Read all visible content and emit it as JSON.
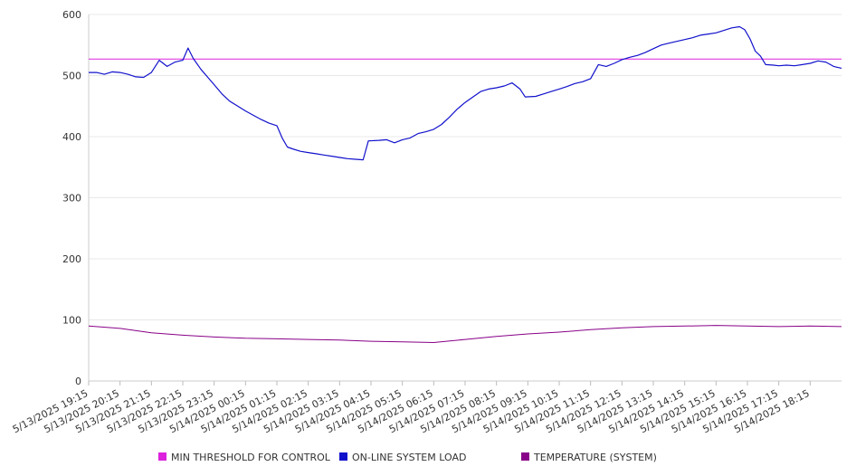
{
  "chart_data": {
    "type": "line",
    "title": "",
    "xlabel": "",
    "ylabel": "",
    "ylim": [
      0,
      600
    ],
    "yticks": [
      0,
      100,
      200,
      300,
      400,
      500,
      600
    ],
    "grid": true,
    "legend_position": "bottom",
    "x_start": "5/13/2025 19:15",
    "x_end": "5/14/2025 19:15",
    "x_tick_labels": [
      "5/13/2025 19:15",
      "5/13/2025 20:15",
      "5/13/2025 21:15",
      "5/13/2025 22:15",
      "5/13/2025 23:15",
      "5/14/2025 00:15",
      "5/14/2025 01:15",
      "5/14/2025 02:15",
      "5/14/2025 03:15",
      "5/14/2025 04:15",
      "5/14/2025 05:15",
      "5/14/2025 06:15",
      "5/14/2025 07:15",
      "5/14/2025 08:15",
      "5/14/2025 09:15",
      "5/14/2025 10:15",
      "5/14/2025 11:15",
      "5/14/2025 12:15",
      "5/14/2025 13:15",
      "5/14/2025 14:15",
      "5/14/2025 15:15",
      "5/14/2025 16:15",
      "5/14/2025 17:15",
      "5/14/2025 18:15"
    ],
    "series": [
      {
        "name": "MIN THRESHOLD FOR CONTROL",
        "color": "#dd22dd",
        "points": [
          [
            "5/13/2025 19:15",
            527
          ],
          [
            "5/14/2025 19:15",
            527
          ]
        ]
      },
      {
        "name": "ON-LINE SYSTEM LOAD",
        "color": "#1111cc",
        "points": [
          [
            "5/13/2025 19:15",
            505
          ],
          [
            "5/13/2025 19:30",
            505
          ],
          [
            "5/13/2025 19:45",
            502
          ],
          [
            "5/13/2025 20:00",
            506
          ],
          [
            "5/13/2025 20:15",
            505
          ],
          [
            "5/13/2025 20:30",
            502
          ],
          [
            "5/13/2025 20:45",
            498
          ],
          [
            "5/13/2025 21:00",
            497
          ],
          [
            "5/13/2025 21:15",
            505
          ],
          [
            "5/13/2025 21:30",
            525
          ],
          [
            "5/13/2025 21:45",
            515
          ],
          [
            "5/13/2025 22:00",
            522
          ],
          [
            "5/13/2025 22:15",
            525
          ],
          [
            "5/13/2025 22:25",
            545
          ],
          [
            "5/13/2025 22:35",
            528
          ],
          [
            "5/13/2025 22:50",
            510
          ],
          [
            "5/13/2025 23:05",
            495
          ],
          [
            "5/13/2025 23:15",
            485
          ],
          [
            "5/13/2025 23:30",
            470
          ],
          [
            "5/13/2025 23:45",
            458
          ],
          [
            "5/14/2025 00:00",
            450
          ],
          [
            "5/14/2025 00:15",
            442
          ],
          [
            "5/14/2025 00:30",
            435
          ],
          [
            "5/14/2025 00:45",
            428
          ],
          [
            "5/14/2025 01:00",
            422
          ],
          [
            "5/14/2025 01:15",
            418
          ],
          [
            "5/14/2025 01:25",
            398
          ],
          [
            "5/14/2025 01:35",
            383
          ],
          [
            "5/14/2025 01:45",
            380
          ],
          [
            "5/14/2025 02:00",
            376
          ],
          [
            "5/14/2025 02:15",
            374
          ],
          [
            "5/14/2025 02:30",
            372
          ],
          [
            "5/14/2025 02:45",
            370
          ],
          [
            "5/14/2025 03:00",
            368
          ],
          [
            "5/14/2025 03:15",
            366
          ],
          [
            "5/14/2025 03:30",
            364
          ],
          [
            "5/14/2025 03:45",
            363
          ],
          [
            "5/14/2025 04:00",
            362
          ],
          [
            "5/14/2025 04:10",
            393
          ],
          [
            "5/14/2025 04:30",
            394
          ],
          [
            "5/14/2025 04:45",
            395
          ],
          [
            "5/14/2025 05:00",
            390
          ],
          [
            "5/14/2025 05:15",
            395
          ],
          [
            "5/14/2025 05:30",
            398
          ],
          [
            "5/14/2025 05:45",
            405
          ],
          [
            "5/14/2025 06:00",
            408
          ],
          [
            "5/14/2025 06:15",
            412
          ],
          [
            "5/14/2025 06:30",
            420
          ],
          [
            "5/14/2025 06:45",
            432
          ],
          [
            "5/14/2025 07:00",
            445
          ],
          [
            "5/14/2025 07:15",
            456
          ],
          [
            "5/14/2025 07:30",
            465
          ],
          [
            "5/14/2025 07:45",
            474
          ],
          [
            "5/14/2025 08:00",
            478
          ],
          [
            "5/14/2025 08:15",
            480
          ],
          [
            "5/14/2025 08:30",
            483
          ],
          [
            "5/14/2025 08:45",
            488
          ],
          [
            "5/14/2025 09:00",
            478
          ],
          [
            "5/14/2025 09:10",
            465
          ],
          [
            "5/14/2025 09:30",
            466
          ],
          [
            "5/14/2025 09:45",
            470
          ],
          [
            "5/14/2025 10:00",
            474
          ],
          [
            "5/14/2025 10:15",
            478
          ],
          [
            "5/14/2025 10:30",
            482
          ],
          [
            "5/14/2025 10:45",
            487
          ],
          [
            "5/14/2025 11:00",
            490
          ],
          [
            "5/14/2025 11:15",
            495
          ],
          [
            "5/14/2025 11:30",
            518
          ],
          [
            "5/14/2025 11:45",
            515
          ],
          [
            "5/14/2025 12:00",
            520
          ],
          [
            "5/14/2025 12:15",
            526
          ],
          [
            "5/14/2025 12:30",
            530
          ],
          [
            "5/14/2025 12:45",
            533
          ],
          [
            "5/14/2025 13:00",
            538
          ],
          [
            "5/14/2025 13:15",
            544
          ],
          [
            "5/14/2025 13:30",
            550
          ],
          [
            "5/14/2025 13:45",
            553
          ],
          [
            "5/14/2025 14:00",
            556
          ],
          [
            "5/14/2025 14:15",
            559
          ],
          [
            "5/14/2025 14:30",
            562
          ],
          [
            "5/14/2025 14:45",
            566
          ],
          [
            "5/14/2025 15:00",
            568
          ],
          [
            "5/14/2025 15:15",
            570
          ],
          [
            "5/14/2025 15:30",
            574
          ],
          [
            "5/14/2025 15:45",
            578
          ],
          [
            "5/14/2025 16:00",
            580
          ],
          [
            "5/14/2025 16:10",
            575
          ],
          [
            "5/14/2025 16:20",
            560
          ],
          [
            "5/14/2025 16:30",
            540
          ],
          [
            "5/14/2025 16:40",
            532
          ],
          [
            "5/14/2025 16:50",
            518
          ],
          [
            "5/14/2025 17:05",
            517
          ],
          [
            "5/14/2025 17:15",
            516
          ],
          [
            "5/14/2025 17:30",
            517
          ],
          [
            "5/14/2025 17:45",
            516
          ],
          [
            "5/14/2025 18:00",
            518
          ],
          [
            "5/14/2025 18:15",
            520
          ],
          [
            "5/14/2025 18:30",
            524
          ],
          [
            "5/14/2025 18:45",
            522
          ],
          [
            "5/14/2025 19:00",
            515
          ],
          [
            "5/14/2025 19:15",
            512
          ]
        ]
      },
      {
        "name": "TEMPERATURE (SYSTEM)",
        "color": "#880088",
        "points": [
          [
            "5/13/2025 19:15",
            90
          ],
          [
            "5/13/2025 20:15",
            86
          ],
          [
            "5/13/2025 21:15",
            79
          ],
          [
            "5/13/2025 22:15",
            75
          ],
          [
            "5/13/2025 23:15",
            72
          ],
          [
            "5/14/2025 00:15",
            70
          ],
          [
            "5/14/2025 01:15",
            69
          ],
          [
            "5/14/2025 02:15",
            68
          ],
          [
            "5/14/2025 03:15",
            67
          ],
          [
            "5/14/2025 04:15",
            65
          ],
          [
            "5/14/2025 05:15",
            64
          ],
          [
            "5/14/2025 06:15",
            63
          ],
          [
            "5/14/2025 07:15",
            68
          ],
          [
            "5/14/2025 08:15",
            73
          ],
          [
            "5/14/2025 09:15",
            77
          ],
          [
            "5/14/2025 10:15",
            80
          ],
          [
            "5/14/2025 11:15",
            84
          ],
          [
            "5/14/2025 12:15",
            87
          ],
          [
            "5/14/2025 13:15",
            89
          ],
          [
            "5/14/2025 14:15",
            90
          ],
          [
            "5/14/2025 15:15",
            91
          ],
          [
            "5/14/2025 16:15",
            90
          ],
          [
            "5/14/2025 17:15",
            89
          ],
          [
            "5/14/2025 18:15",
            90
          ],
          [
            "5/14/2025 19:15",
            89
          ]
        ]
      }
    ]
  }
}
